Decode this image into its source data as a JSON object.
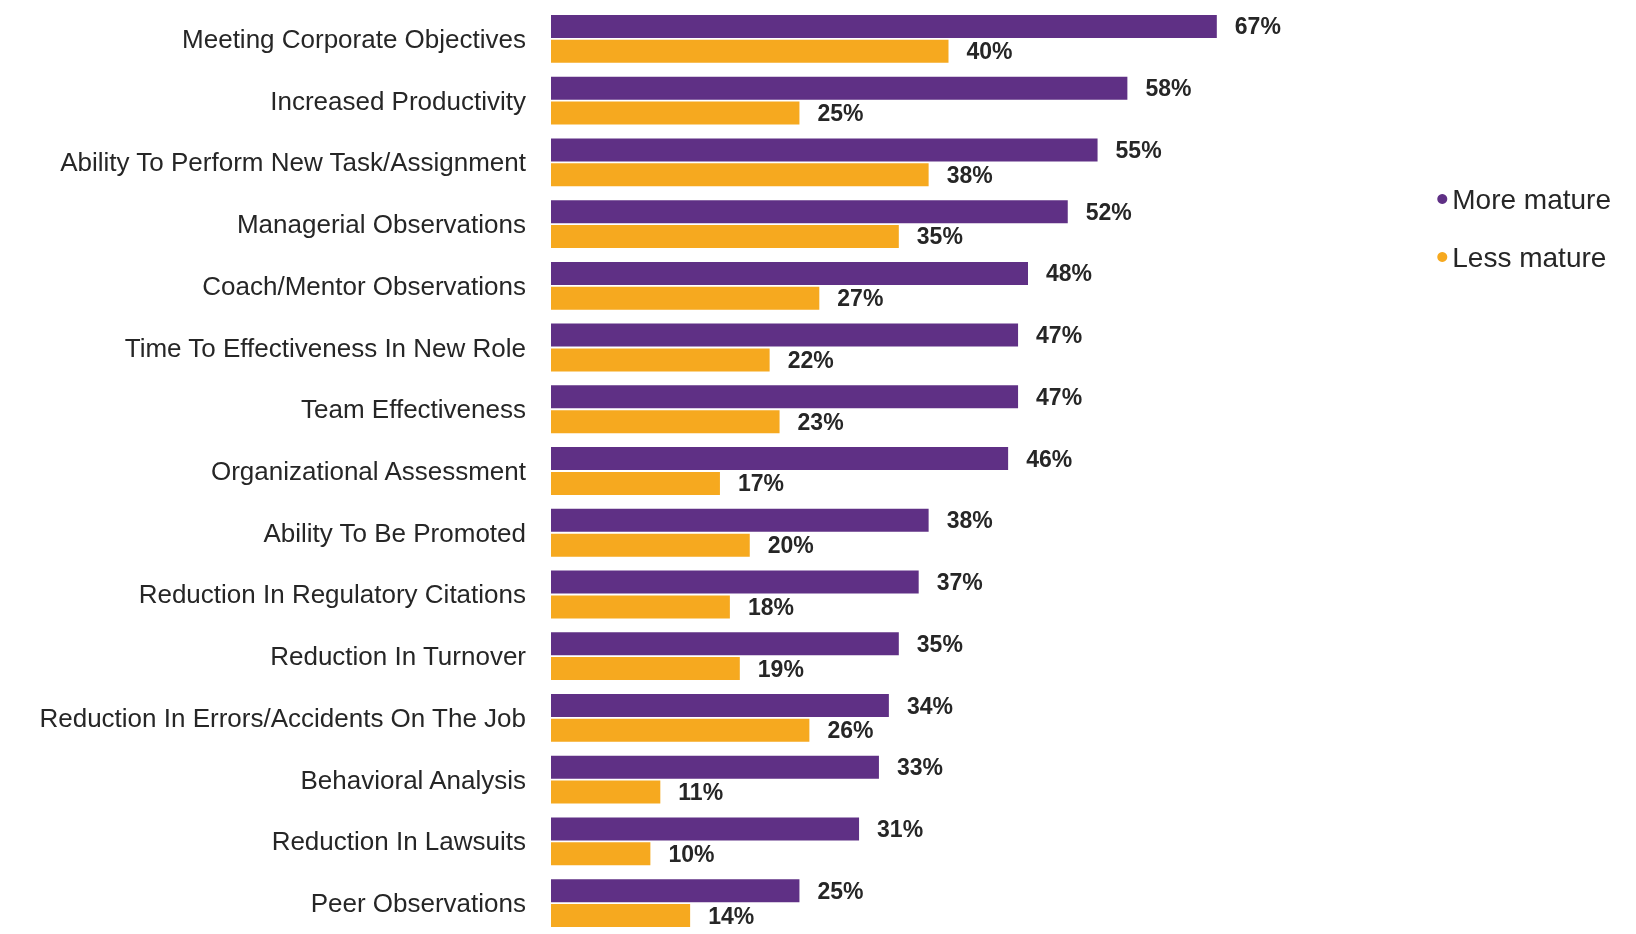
{
  "chart_data": {
    "type": "bar",
    "orientation": "horizontal",
    "legend": "right",
    "marker": "circle",
    "categories": [
      "Meeting Corporate Objectives",
      "Increased Productivity",
      "Ability To Perform New Task/Assignment",
      "Managerial Observations",
      "Coach/Mentor Observations",
      "Time To Effectiveness In New Role",
      "Team Effectiveness",
      "Organizational Assessment",
      "Ability To Be Promoted",
      "Reduction In Regulatory Citations",
      "Reduction In Turnover",
      "Reduction In Errors/Accidents On The Job",
      "Behavioral Analysis",
      "Reduction In Lawsuits",
      "Peer Observations"
    ],
    "series": [
      {
        "name": "More mature",
        "color": "#5f3085",
        "values": [
          67,
          58,
          55,
          52,
          48,
          47,
          47,
          46,
          38,
          37,
          35,
          34,
          33,
          31,
          25
        ],
        "value_labels": [
          "67%",
          "58%",
          "55%",
          "52%",
          "48%",
          "47%",
          "47%",
          "46%",
          "38%",
          "37%",
          "35%",
          "34%",
          "33%",
          "31%",
          "25%"
        ]
      },
      {
        "name": "Less mature",
        "color": "#f6a91f",
        "values": [
          40,
          25,
          38,
          35,
          27,
          22,
          23,
          17,
          20,
          18,
          19,
          26,
          11,
          10,
          14
        ],
        "value_labels": [
          "40%",
          "25%",
          "38%",
          "35%",
          "27%",
          "22%",
          "23%",
          "17%",
          "20%",
          "18%",
          "19%",
          "26%",
          "11%",
          "10%",
          "14%"
        ]
      }
    ]
  }
}
